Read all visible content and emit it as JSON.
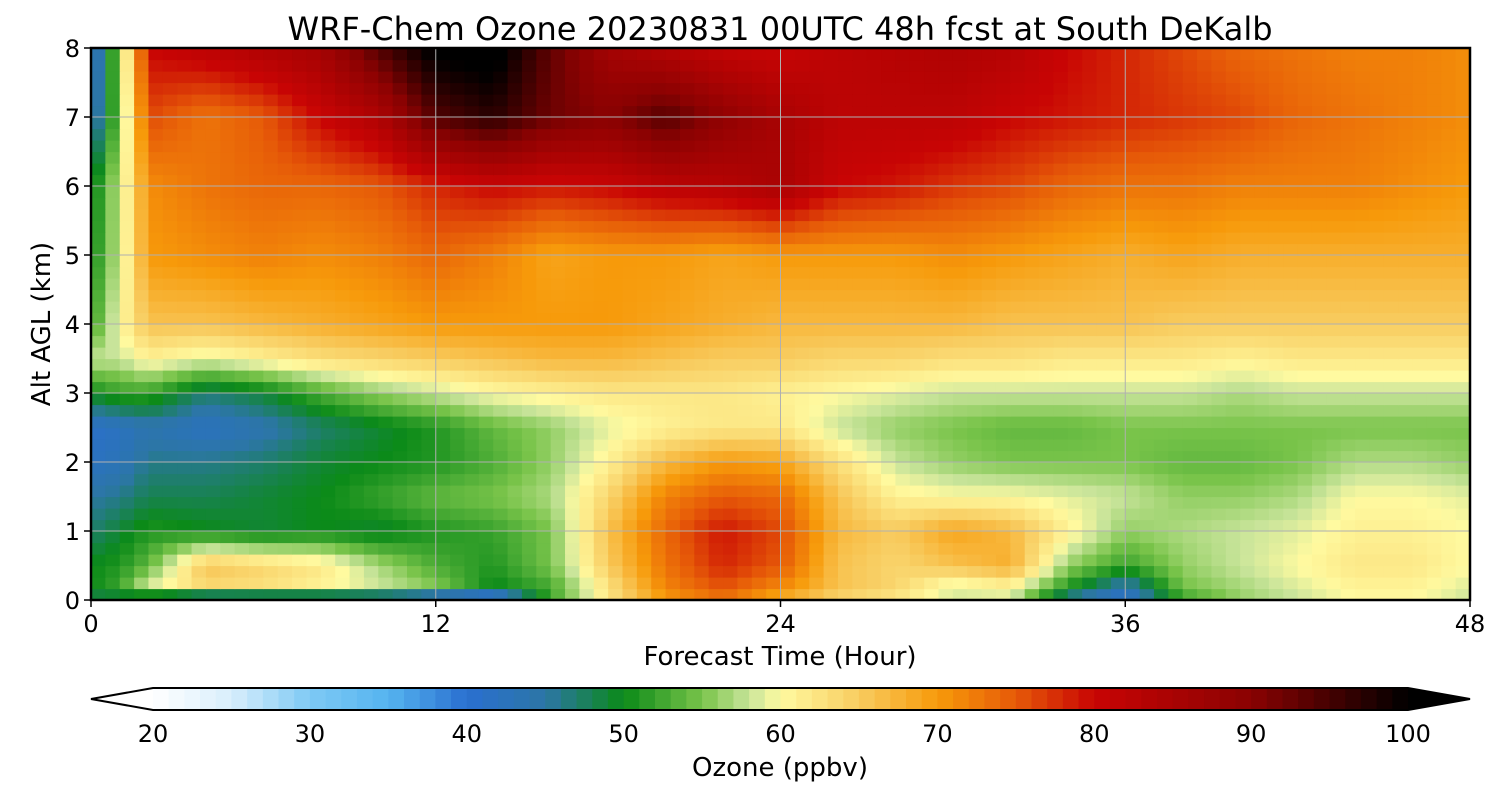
{
  "chart_data": {
    "type": "heatmap",
    "title": "WRF-Chem Ozone  20230831 00UTC 48h fcst at South DeKalb",
    "xlabel": "Forecast Time (Hour)",
    "ylabel": "Alt AGL (km)",
    "xlim": [
      0,
      48
    ],
    "ylim": [
      0,
      8
    ],
    "xticks": [
      0,
      12,
      24,
      36,
      48
    ],
    "yticks": [
      0,
      1,
      2,
      3,
      4,
      5,
      6,
      7,
      8
    ],
    "grid": true,
    "x": [
      0,
      1,
      2,
      4,
      6,
      8,
      10,
      12,
      14,
      16,
      18,
      20,
      22,
      24,
      26,
      28,
      30,
      32,
      34,
      36,
      38,
      40,
      42,
      44,
      46,
      48
    ],
    "y": [
      0,
      0.25,
      0.5,
      1,
      1.5,
      2,
      2.5,
      3,
      3.5,
      4,
      5,
      6,
      7,
      8
    ],
    "values": [
      [
        48,
        48,
        47,
        40,
        41,
        42,
        42,
        40,
        38,
        52,
        62,
        70,
        73,
        68,
        64,
        62,
        58,
        58,
        45,
        40,
        52,
        56,
        58,
        60,
        60,
        58
      ],
      [
        50,
        52,
        58,
        64,
        63,
        61,
        58,
        55,
        50,
        53,
        63,
        72,
        76,
        72,
        66,
        64,
        60,
        62,
        52,
        45,
        55,
        57,
        59,
        61,
        61,
        59
      ],
      [
        50,
        51,
        54,
        66,
        64,
        62,
        57,
        53,
        51,
        55,
        65,
        73,
        78,
        75,
        66,
        64,
        66,
        68,
        56,
        52,
        56,
        58,
        60,
        62,
        62,
        60
      ],
      [
        47,
        49,
        51,
        50,
        49,
        50,
        49,
        51,
        52,
        55,
        66,
        74,
        79,
        76,
        67,
        65,
        69,
        67,
        61,
        56,
        57,
        58,
        59,
        61,
        61,
        60
      ],
      [
        45,
        46,
        48,
        48,
        49,
        50,
        52,
        54,
        55,
        57,
        64,
        72,
        75,
        74,
        66,
        61,
        60,
        60,
        59,
        58,
        56,
        56,
        57,
        60,
        60,
        59
      ],
      [
        42,
        43,
        46,
        46,
        47,
        49,
        50,
        51,
        53,
        56,
        61,
        67,
        70,
        69,
        63,
        58,
        56,
        55,
        55,
        55,
        54,
        54,
        55,
        57,
        57,
        56
      ],
      [
        41,
        42,
        44,
        42,
        44,
        47,
        49,
        51,
        54,
        56,
        59,
        61,
        62,
        62,
        58,
        56,
        55,
        54,
        54,
        55,
        55,
        55,
        55,
        55,
        55,
        55
      ],
      [
        50,
        52,
        52,
        47,
        49,
        53,
        56,
        58,
        60,
        61,
        62,
        62,
        62,
        61,
        60,
        59,
        58,
        58,
        58,
        58,
        58,
        57,
        58,
        58,
        58,
        58
      ],
      [
        58,
        58,
        61,
        59,
        61,
        63,
        64,
        65,
        66,
        67,
        67,
        66,
        65,
        65,
        64,
        64,
        63,
        63,
        62,
        62,
        62,
        61,
        62,
        62,
        62,
        62
      ],
      [
        52,
        60,
        66,
        66,
        67,
        68,
        69,
        70,
        70,
        70,
        70,
        69,
        68,
        67,
        67,
        67,
        67,
        66,
        66,
        66,
        65,
        65,
        65,
        65,
        65,
        65
      ],
      [
        50,
        58,
        70,
        71,
        72,
        71,
        72,
        74,
        72,
        69,
        70,
        70,
        69,
        70,
        70,
        70,
        71,
        70,
        69,
        68,
        69,
        68,
        68,
        68,
        68,
        68
      ],
      [
        49,
        58,
        71,
        73,
        74,
        74,
        75,
        78,
        80,
        79,
        80,
        82,
        83,
        85,
        80,
        79,
        77,
        76,
        74,
        73,
        73,
        72,
        72,
        72,
        71,
        70
      ],
      [
        42,
        55,
        76,
        73,
        75,
        80,
        84,
        94,
        97,
        92,
        90,
        94,
        89,
        85,
        82,
        82,
        82,
        80,
        79,
        78,
        77,
        76,
        74,
        73,
        72,
        71
      ],
      [
        40,
        56,
        80,
        82,
        84,
        86,
        94,
        101,
        102,
        93,
        86,
        83,
        81,
        80,
        82,
        83,
        84,
        83,
        80,
        78,
        76,
        74,
        73,
        72,
        72,
        71
      ]
    ],
    "colorbar": {
      "label": "Ozone  (ppbv)",
      "min": 20,
      "max": 100,
      "ticks": [
        20,
        30,
        40,
        50,
        60,
        70,
        80,
        90,
        100
      ],
      "extend": "both",
      "stops": [
        {
          "v": 20,
          "c": "#ffffff"
        },
        {
          "v": 25,
          "c": "#d8eefc"
        },
        {
          "v": 30,
          "c": "#7ec9f4"
        },
        {
          "v": 35,
          "c": "#55b4ef"
        },
        {
          "v": 40,
          "c": "#2a6fd0"
        },
        {
          "v": 45,
          "c": "#2c76a6"
        },
        {
          "v": 50,
          "c": "#0b8a18"
        },
        {
          "v": 55,
          "c": "#79c44a"
        },
        {
          "v": 58,
          "c": "#c8e49a"
        },
        {
          "v": 60,
          "c": "#fffaa0"
        },
        {
          "v": 65,
          "c": "#f8cc60"
        },
        {
          "v": 70,
          "c": "#f79a0a"
        },
        {
          "v": 75,
          "c": "#e65a08"
        },
        {
          "v": 80,
          "c": "#c80404"
        },
        {
          "v": 90,
          "c": "#8a0202"
        },
        {
          "v": 100,
          "c": "#000000"
        }
      ]
    }
  }
}
